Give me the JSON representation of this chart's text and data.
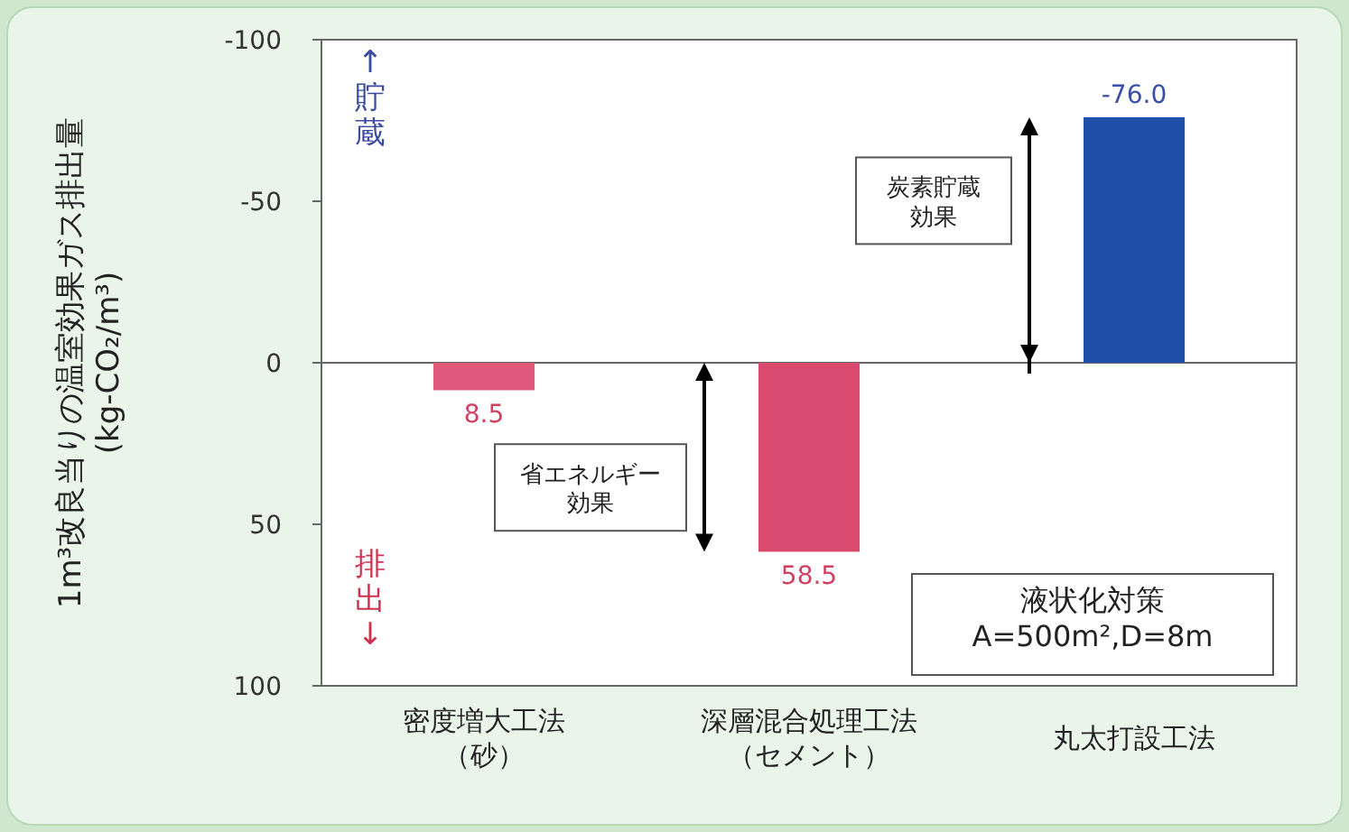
{
  "chart_data": {
    "type": "bar",
    "ylabel": "1m³改良当りの温室効果ガス排出量\n(kg-CO₂/m³)",
    "categories": [
      "密度増大工法（砂）",
      "深層混合処理工法（セメント）",
      "丸太打設工法"
    ],
    "values": [
      8.5,
      58.5,
      -76.0
    ],
    "value_labels": [
      "8.5",
      "58.5",
      "-76.0"
    ],
    "colors": [
      "#e0587a",
      "#d94a6e",
      "#1f4fa8"
    ],
    "ylim": [
      100,
      -100
    ],
    "yticks": [
      -100,
      -50,
      0,
      50,
      100
    ],
    "annotations": [
      "↑貯蔵",
      "排出↓",
      "省エネルギー効果",
      "炭素貯蔵効果",
      "液状化対策\nA=500m²,D=8m"
    ]
  }
}
